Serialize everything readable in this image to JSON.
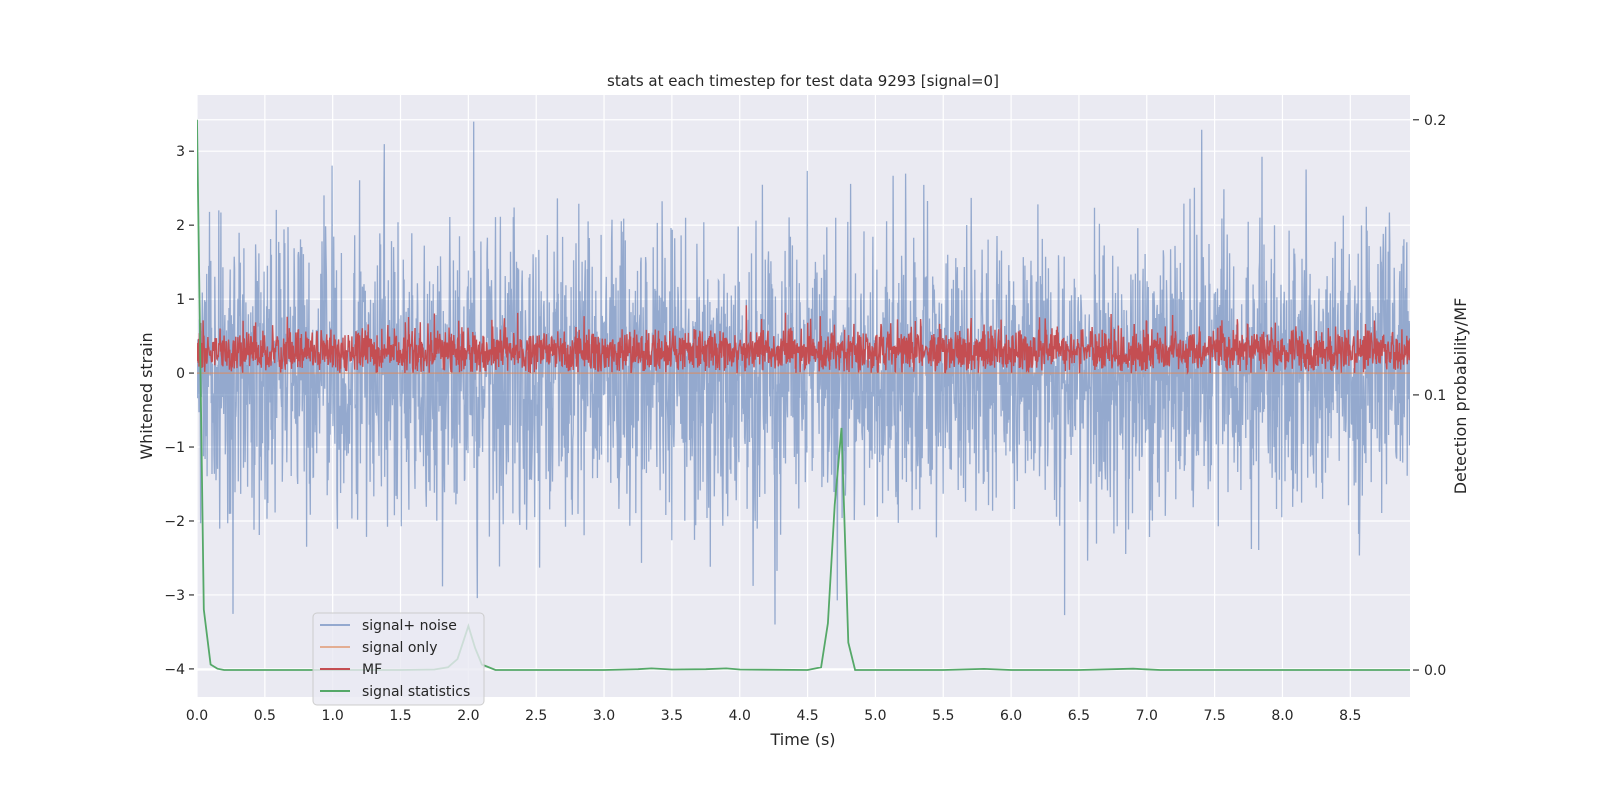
{
  "chart_data": {
    "type": "line",
    "title": "stats at each timestep for test data 9293 [signal=0]",
    "xlabel": "Time (s)",
    "ylabel": "Whitened strain",
    "ylabel_right": "Detection probability/MF",
    "xlim": [
      0,
      8.94
    ],
    "ylim": [
      -4.38,
      3.76
    ],
    "ylim_right": [
      -0.0098,
      0.209
    ],
    "xticks": [
      "0.0",
      "0.5",
      "1.0",
      "1.5",
      "2.0",
      "2.5",
      "3.0",
      "3.5",
      "4.0",
      "4.5",
      "5.0",
      "5.5",
      "6.0",
      "6.5",
      "7.0",
      "7.5",
      "8.0",
      "8.5"
    ],
    "yticks": [
      "3",
      "2",
      "1",
      "0",
      "−1",
      "−2",
      "−3",
      "−4"
    ],
    "yticks_right": [
      "0.2",
      "0.1",
      "0.0"
    ],
    "grid": true,
    "legend_position": "lower-left",
    "series": [
      {
        "name": "signal+ noise",
        "color": "#4c72b0",
        "axis": "left",
        "kind": "gaussian-noise",
        "std": 1.0,
        "n_samples": 3000
      },
      {
        "name": "signal only",
        "color": "#dd8452",
        "axis": "left",
        "kind": "constant",
        "value": 0
      },
      {
        "name": "MF",
        "color": "#c44e52",
        "axis": "left",
        "kind": "positive-noise",
        "mean": 0.3,
        "n_samples": 3000
      },
      {
        "name": "signal statistics",
        "color": "#55a868",
        "axis": "right",
        "x": [
          0.0,
          0.05,
          0.1,
          0.15,
          0.2,
          0.3,
          0.5,
          1.0,
          1.5,
          1.75,
          1.85,
          1.92,
          2.0,
          2.05,
          2.1,
          2.2,
          2.5,
          3.0,
          3.25,
          3.35,
          3.5,
          3.75,
          3.9,
          4.0,
          4.5,
          4.6,
          4.65,
          4.7,
          4.75,
          4.8,
          4.85,
          4.9,
          5.5,
          5.8,
          6.0,
          6.5,
          6.9,
          7.1,
          7.5,
          8.0,
          8.94
        ],
        "y": [
          0.2,
          0.022,
          0.002,
          0.0005,
          0.0,
          0.0,
          0.0,
          0.0,
          0.0,
          0.0002,
          0.001,
          0.004,
          0.016,
          0.008,
          0.002,
          0.0,
          0.0,
          0.0,
          0.0003,
          0.0006,
          0.0002,
          0.0003,
          0.0006,
          0.0002,
          0.0,
          0.001,
          0.017,
          0.06,
          0.088,
          0.01,
          0.0,
          0.0,
          0.0,
          0.0004,
          0.0,
          0.0,
          0.0005,
          0.0,
          0.0,
          0.0,
          0.0
        ]
      }
    ]
  }
}
